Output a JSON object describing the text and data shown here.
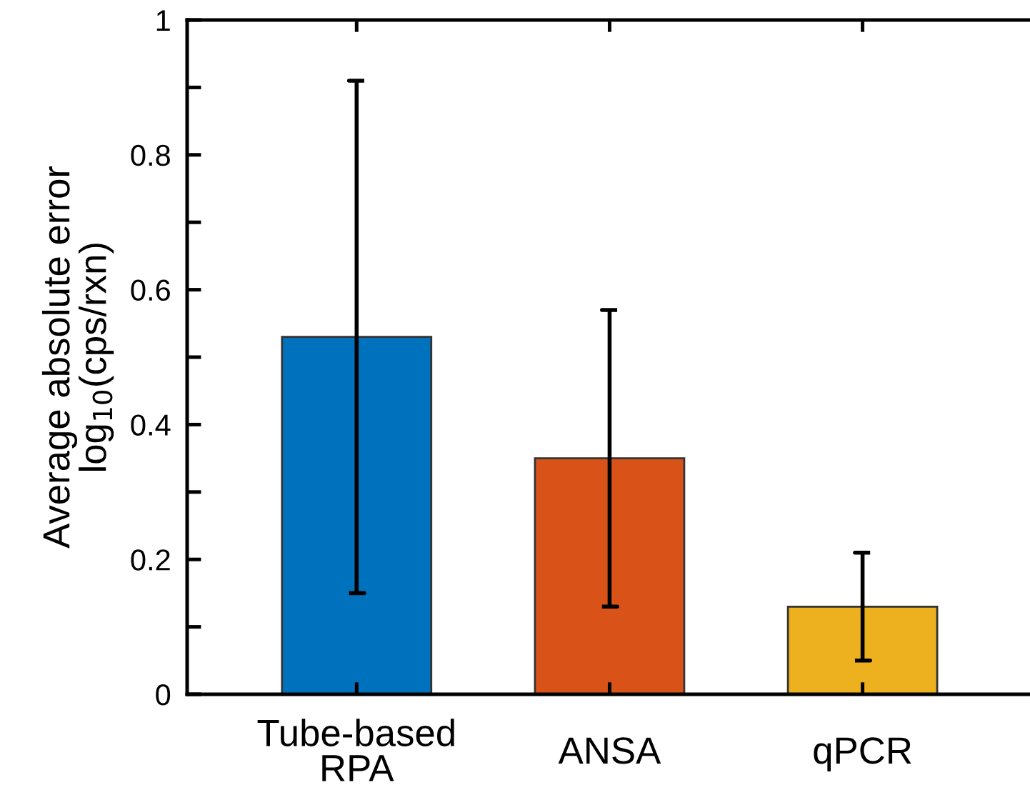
{
  "chart_data": {
    "type": "bar",
    "ylabel": "Average absolute error\nlog$_{10}$(cps/rxn)",
    "categories": [
      "Tube-based\nRPA",
      "ANSA",
      "qPCR"
    ],
    "values": [
      0.53,
      0.35,
      0.13
    ],
    "colors": [
      "#0072bd",
      "#d95319",
      "#edb120"
    ],
    "errors": [
      [
        0.15,
        0.91
      ],
      [
        0.13,
        0.57
      ],
      [
        0.05,
        0.21
      ]
    ],
    "ylim": [
      0,
      1
    ],
    "yticks": [
      0,
      {
        "value": 0.1,
        "label": null
      },
      0.2,
      {
        "value": 0.3,
        "label": null
      },
      0.4,
      {
        "value": 0.5,
        "label": null
      },
      0.6,
      {
        "value": 0.7,
        "label": null
      },
      0.8,
      {
        "value": 0.9,
        "label": null
      },
      1
    ],
    "grid": false,
    "legend": false
  }
}
